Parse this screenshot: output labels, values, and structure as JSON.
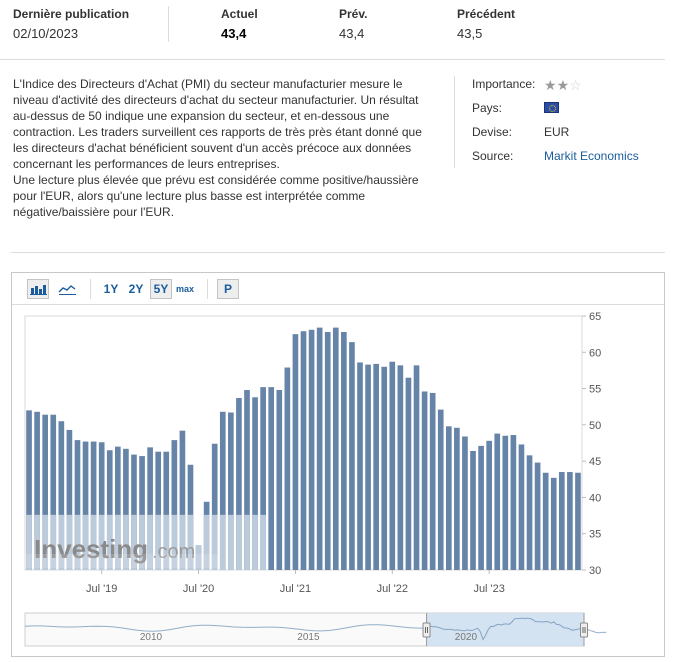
{
  "stats": {
    "last_release": {
      "label": "Dernière publication",
      "value": "02/10/2023"
    },
    "actual": {
      "label": "Actuel",
      "value": "43,4"
    },
    "forecast": {
      "label": "Prév.",
      "value": "43,4"
    },
    "previous": {
      "label": "Précédent",
      "value": "43,5"
    }
  },
  "description": {
    "p1": "L'Indice des Directeurs d'Achat (PMI) du secteur manufacturier mesure le niveau d'activité des directeurs d'achat du secteur manufacturier. Un résultat au-dessus de 50 indique une expansion du secteur, et en-dessous une contraction. Les traders surveillent ces rapports de très près étant donné que les directeurs d'achat bénéficient souvent d'un accès précoce aux données concernant les performances de leurs entreprises.",
    "p2": "Une lecture plus élevée que prévu est considérée comme positive/haussière pour l'EUR, alors qu'une lecture plus basse est interprétée comme négative/baissière pour l'EUR."
  },
  "info": {
    "importance_label": "Importance:",
    "importance_stars": 2,
    "importance_max": 3,
    "country_label": "Pays:",
    "country_icon": "eu-flag-icon",
    "currency_label": "Devise:",
    "currency_value": "EUR",
    "source_label": "Source:",
    "source_value": "Markit Economics"
  },
  "toolbar": {
    "bar_chart_icon": "bar-chart-icon",
    "area_chart_icon": "area-chart-icon",
    "ranges": [
      "1Y",
      "2Y",
      "5Y",
      "max"
    ],
    "active_range": "5Y",
    "print_label": "P"
  },
  "watermark": {
    "brand": "Investing",
    "suffix": ".com"
  },
  "colors": {
    "bar": "#6684a8",
    "bar_watermark": "#bccbdb",
    "link": "#1a5c9c",
    "navigator_fill": "#cfe0ef",
    "navigator_line": "#4d7aa6"
  },
  "chart_data": {
    "type": "bar",
    "series": [
      {
        "name": "",
        "start": "2018-10",
        "values": [
          52.0,
          51.8,
          51.4,
          51.4,
          50.5,
          49.3,
          47.9,
          47.7,
          47.7,
          47.6,
          46.5,
          47.0,
          46.7,
          45.9,
          45.7,
          46.9,
          46.3,
          46.3,
          47.9,
          49.2,
          44.5,
          33.4,
          39.4,
          47.4,
          51.8,
          51.7,
          53.7,
          54.8,
          53.8,
          55.2,
          55.2,
          54.8,
          57.9,
          62.5,
          62.9,
          63.1,
          63.4,
          62.8,
          63.4,
          62.8,
          61.4,
          58.6,
          58.3,
          58.4,
          58.0,
          58.7,
          58.2,
          56.5,
          58.2,
          54.6,
          54.4,
          52.1,
          49.8,
          49.6,
          48.4,
          46.4,
          47.1,
          47.8,
          48.8,
          48.5,
          48.6,
          47.3,
          45.8,
          44.8,
          43.4,
          42.7,
          43.5,
          43.5,
          43.4
        ],
        "last": "2023-09"
      }
    ],
    "x_ticks": [
      "Jul '19",
      "Jul '20",
      "Jul '21",
      "Jul '22",
      "Jul '23"
    ],
    "y_ticks": [
      30,
      35,
      40,
      45,
      50,
      55,
      60,
      65
    ],
    "ylim": [
      30,
      65
    ],
    "navigator": {
      "ticks": [
        "2010",
        "2015",
        "2020"
      ],
      "range": [
        "2006",
        "2023"
      ],
      "selected": [
        "2018-10",
        "2023-09"
      ]
    }
  }
}
